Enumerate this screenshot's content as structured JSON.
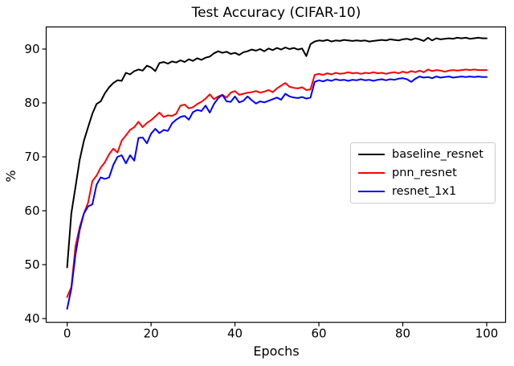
{
  "figure": {
    "background": "#ffffff",
    "axes_color": "#000000"
  },
  "chart_data": {
    "type": "line",
    "title": "Test Accuracy (CIFAR-10)",
    "xlabel": "Epochs",
    "ylabel": "%",
    "x_ticks": [
      0,
      20,
      40,
      60,
      80,
      100
    ],
    "y_ticks": [
      40,
      50,
      60,
      70,
      80,
      90
    ],
    "xlim": [
      -5,
      104.5
    ],
    "ylim": [
      39.3,
      94.1
    ],
    "grid": false,
    "legend_position": "center right",
    "x_start": 0,
    "x_step": 1,
    "n_points": 101,
    "series": [
      {
        "name": "baseline_resnet",
        "color": "#000000",
        "values": [
          49.5,
          59.5,
          64.5,
          69.5,
          73.0,
          75.5,
          78.0,
          79.8,
          80.3,
          81.8,
          82.9,
          83.7,
          84.2,
          84.1,
          85.6,
          85.3,
          85.9,
          86.2,
          86.0,
          86.9,
          86.6,
          85.9,
          87.4,
          87.6,
          87.3,
          87.7,
          87.5,
          87.9,
          87.6,
          88.1,
          87.8,
          88.3,
          88.0,
          88.4,
          88.6,
          89.2,
          89.6,
          89.3,
          89.5,
          89.1,
          89.3,
          88.9,
          89.4,
          89.6,
          89.9,
          89.7,
          90.0,
          89.6,
          90.1,
          89.8,
          90.2,
          89.9,
          90.3,
          90.0,
          90.2,
          89.9,
          90.1,
          88.7,
          90.9,
          91.4,
          91.6,
          91.5,
          91.7,
          91.4,
          91.6,
          91.5,
          91.7,
          91.6,
          91.5,
          91.6,
          91.5,
          91.6,
          91.4,
          91.5,
          91.6,
          91.7,
          91.6,
          91.8,
          91.7,
          91.6,
          91.8,
          91.9,
          91.7,
          92.0,
          91.8,
          91.5,
          92.1,
          91.6,
          92.0,
          91.8,
          91.9,
          92.0,
          91.9,
          92.1,
          92.0,
          92.1,
          91.9,
          92.0,
          92.1,
          92.0,
          92.0
        ]
      },
      {
        "name": "pnn_resnet",
        "color": "#ff0000",
        "values": [
          44.0,
          45.8,
          53.5,
          57.0,
          59.5,
          61.5,
          65.5,
          66.5,
          68.0,
          69.0,
          70.5,
          71.5,
          70.8,
          73.0,
          74.0,
          75.0,
          75.5,
          76.5,
          75.5,
          76.3,
          76.8,
          77.5,
          78.2,
          77.4,
          77.7,
          77.6,
          78.0,
          79.5,
          79.7,
          79.0,
          79.2,
          79.8,
          80.2,
          80.8,
          81.6,
          80.7,
          81.2,
          81.5,
          81.0,
          81.9,
          82.2,
          81.5,
          81.7,
          81.9,
          82.0,
          82.2,
          81.9,
          82.1,
          82.4,
          82.0,
          82.7,
          83.2,
          83.7,
          83.0,
          82.8,
          82.7,
          82.9,
          82.4,
          82.5,
          85.2,
          85.4,
          85.2,
          85.5,
          85.3,
          85.6,
          85.4,
          85.5,
          85.7,
          85.5,
          85.6,
          85.4,
          85.6,
          85.5,
          85.7,
          85.5,
          85.6,
          85.4,
          85.6,
          85.7,
          85.5,
          85.8,
          85.6,
          85.9,
          85.7,
          86.0,
          85.7,
          86.2,
          85.9,
          86.1,
          86.0,
          85.8,
          86.0,
          86.1,
          86.0,
          86.1,
          86.2,
          86.1,
          86.2,
          86.1,
          86.1,
          86.1
        ]
      },
      {
        "name": "resnet_1x1",
        "color": "#0000ff",
        "values": [
          41.8,
          45.5,
          52.0,
          56.5,
          59.5,
          60.8,
          61.2,
          64.8,
          66.2,
          65.9,
          66.2,
          68.5,
          70.0,
          70.3,
          68.8,
          70.3,
          69.3,
          73.5,
          73.6,
          72.5,
          74.3,
          75.2,
          74.4,
          75.0,
          74.8,
          76.2,
          76.9,
          77.4,
          77.6,
          76.9,
          78.3,
          78.7,
          78.5,
          79.5,
          78.2,
          79.8,
          80.9,
          81.5,
          80.3,
          80.2,
          81.2,
          80.1,
          80.4,
          81.2,
          80.5,
          79.9,
          80.3,
          80.1,
          80.4,
          80.7,
          81.0,
          80.6,
          81.7,
          81.2,
          81.0,
          80.9,
          81.1,
          80.8,
          81.0,
          83.9,
          84.2,
          84.0,
          84.3,
          84.1,
          84.4,
          84.2,
          84.3,
          84.1,
          84.3,
          84.2,
          84.4,
          84.2,
          84.3,
          84.1,
          84.3,
          84.4,
          84.2,
          84.4,
          84.3,
          84.5,
          84.6,
          84.4,
          83.9,
          84.5,
          84.9,
          84.7,
          84.8,
          84.6,
          84.9,
          84.7,
          84.8,
          84.9,
          84.7,
          84.8,
          84.9,
          84.8,
          84.9,
          84.8,
          84.9,
          84.8,
          84.8
        ]
      }
    ]
  }
}
